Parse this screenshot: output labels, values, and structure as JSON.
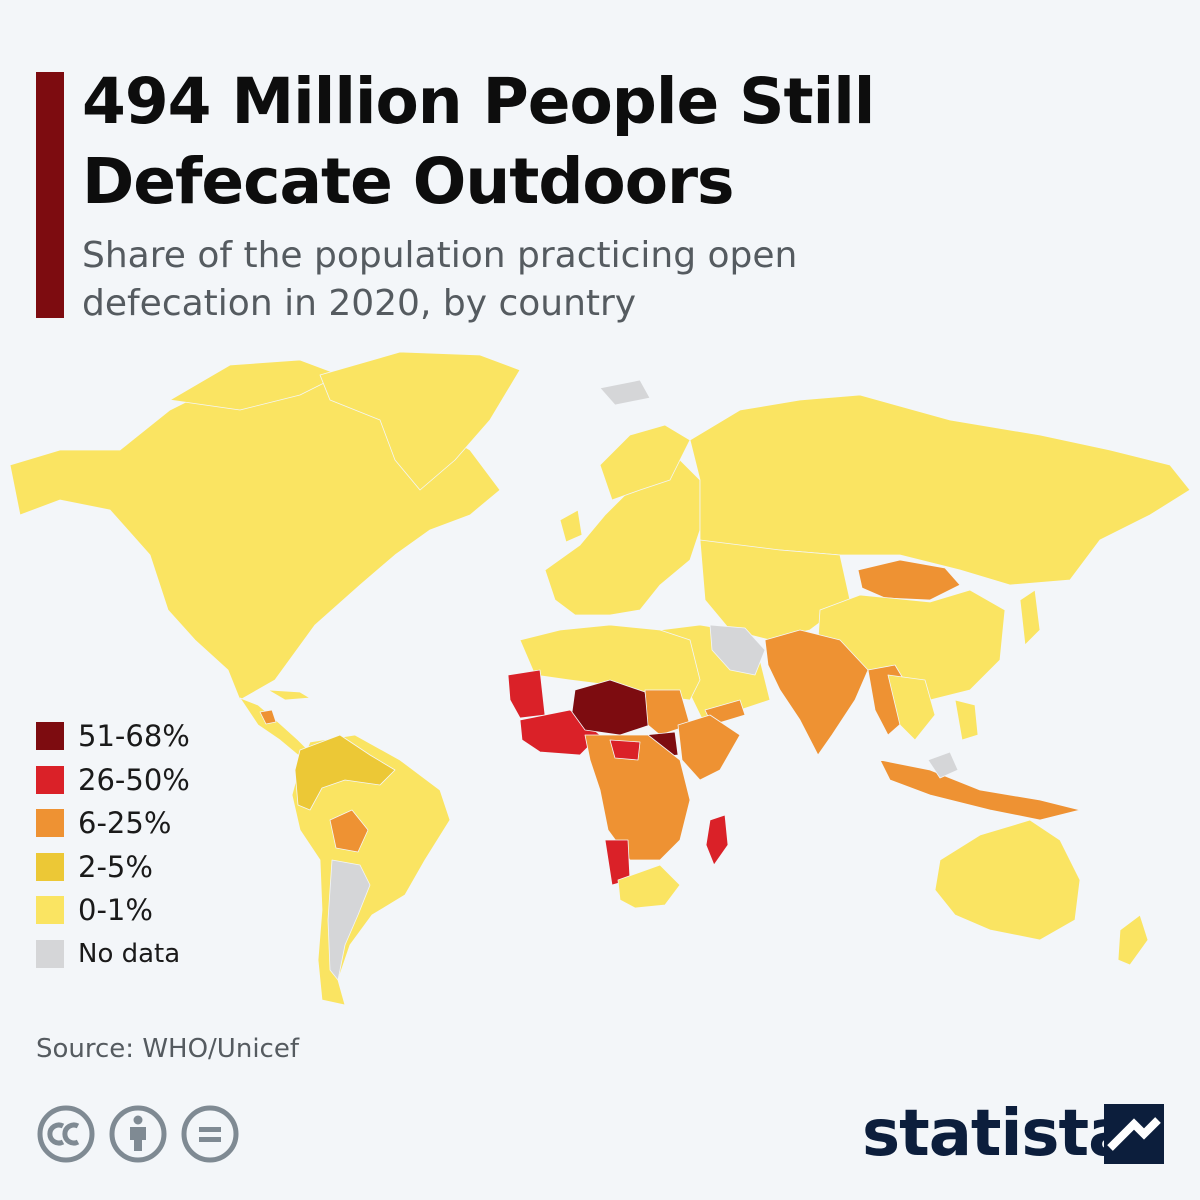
{
  "header": {
    "title": "494 Million People Still Defecate Outdoors",
    "subtitle": "Share of the population practicing open defecation in 2020, by country"
  },
  "colors": {
    "accent": "#7d0c10",
    "background": "#f3f6f9",
    "brand": "#0c1e3c"
  },
  "legend": {
    "items": [
      {
        "label": "51-68%",
        "color": "#7d0c10"
      },
      {
        "label": "26-50%",
        "color": "#da2128"
      },
      {
        "label": "6-25%",
        "color": "#ee9233"
      },
      {
        "label": "2-5%",
        "color": "#ecc836"
      },
      {
        "label": "0-1%",
        "color": "#fae462"
      },
      {
        "label": "No data",
        "color": "#d5d6d8"
      }
    ]
  },
  "footer": {
    "source": "Source: WHO/Unicef",
    "brand": "statista",
    "license_icons": [
      "cc-icon",
      "attribution-icon",
      "no-derivatives-icon"
    ]
  }
}
